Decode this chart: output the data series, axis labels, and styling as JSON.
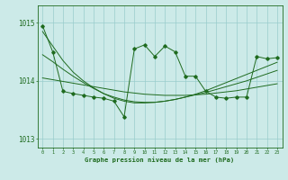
{
  "x": [
    0,
    1,
    2,
    3,
    4,
    5,
    6,
    7,
    8,
    9,
    10,
    11,
    12,
    13,
    14,
    15,
    16,
    17,
    18,
    19,
    20,
    21,
    22,
    23
  ],
  "main_series": [
    1014.95,
    1014.5,
    1013.82,
    1013.78,
    1013.75,
    1013.72,
    1013.7,
    1013.65,
    1013.38,
    1014.55,
    1014.62,
    1014.42,
    1014.6,
    1014.5,
    1014.08,
    1014.08,
    1013.82,
    1013.72,
    1013.7,
    1013.72,
    1013.72,
    1014.42,
    1014.38,
    1014.4
  ],
  "smooth1": [
    1014.85,
    1014.6,
    1014.35,
    1014.15,
    1014.0,
    1013.88,
    1013.78,
    1013.7,
    1013.65,
    1013.62,
    1013.62,
    1013.63,
    1013.65,
    1013.68,
    1013.72,
    1013.76,
    1013.8,
    1013.85,
    1013.9,
    1013.95,
    1014.0,
    1014.06,
    1014.12,
    1014.18
  ],
  "smooth2": [
    1014.05,
    1014.02,
    1013.99,
    1013.96,
    1013.93,
    1013.9,
    1013.87,
    1013.84,
    1013.81,
    1013.79,
    1013.77,
    1013.76,
    1013.75,
    1013.75,
    1013.75,
    1013.76,
    1013.77,
    1013.79,
    1013.81,
    1013.83,
    1013.86,
    1013.89,
    1013.92,
    1013.95
  ],
  "smooth3": [
    1014.45,
    1014.33,
    1014.2,
    1014.08,
    1013.97,
    1013.87,
    1013.78,
    1013.72,
    1013.67,
    1013.64,
    1013.63,
    1013.63,
    1013.65,
    1013.68,
    1013.72,
    1013.77,
    1013.83,
    1013.9,
    1013.97,
    1014.04,
    1014.11,
    1014.18,
    1014.25,
    1014.32
  ],
  "bg_color": "#cceae8",
  "line_color": "#1f6b1f",
  "grid_color": "#99cccc",
  "ylabel_ticks": [
    1013,
    1014,
    1015
  ],
  "ylim": [
    1012.85,
    1015.3
  ],
  "xlim": [
    -0.5,
    23.5
  ],
  "xlabel": "Graphe pression niveau de la mer (hPa)"
}
